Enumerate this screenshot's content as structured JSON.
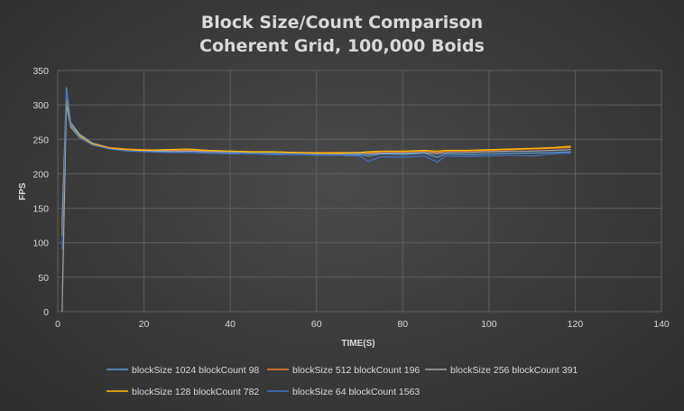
{
  "chart_data": {
    "type": "line",
    "title": "Block Size/Count Comparison",
    "subtitle": "Coherent Grid, 100,000 Boids",
    "xlabel": "TIME(S)",
    "ylabel": "FPS",
    "xlim": [
      0,
      140
    ],
    "ylim": [
      0,
      350
    ],
    "x_ticks": [
      0,
      20,
      40,
      60,
      80,
      100,
      120,
      140
    ],
    "y_ticks": [
      0,
      50,
      100,
      150,
      200,
      250,
      300,
      350
    ],
    "grid": true,
    "legend_position": "bottom",
    "x": [
      1,
      2,
      3,
      5,
      8,
      12,
      16,
      20,
      25,
      30,
      35,
      40,
      45,
      50,
      55,
      60,
      65,
      70,
      72,
      75,
      80,
      85,
      88,
      90,
      95,
      100,
      105,
      110,
      115,
      119
    ],
    "series": [
      {
        "name": "blockSize 1024 blockCount 98",
        "color": "#5b9bd5",
        "values": [
          130,
          325,
          275,
          258,
          245,
          238,
          235,
          233,
          232,
          231,
          230,
          230,
          229,
          229,
          228,
          228,
          227,
          228,
          226,
          229,
          228,
          230,
          224,
          229,
          228,
          229,
          230,
          230,
          231,
          232
        ]
      },
      {
        "name": "blockSize 512 blockCount 196",
        "color": "#ed7d31",
        "values": [
          120,
          310,
          270,
          255,
          244,
          238,
          236,
          235,
          234,
          234,
          233,
          233,
          232,
          232,
          231,
          231,
          231,
          231,
          230,
          232,
          232,
          233,
          231,
          233,
          233,
          234,
          235,
          236,
          237,
          238
        ]
      },
      {
        "name": "blockSize 256 blockCount 391",
        "color": "#a5a5a5",
        "values": [
          0,
          300,
          268,
          253,
          242,
          237,
          235,
          234,
          233,
          233,
          232,
          232,
          231,
          231,
          230,
          230,
          229,
          230,
          229,
          230,
          230,
          231,
          229,
          231,
          231,
          232,
          233,
          233,
          234,
          235
        ]
      },
      {
        "name": "blockSize 128 blockCount 782",
        "color": "#ffc000",
        "values": [
          110,
          315,
          272,
          256,
          243,
          237,
          235,
          234,
          235,
          236,
          234,
          233,
          232,
          232,
          231,
          230,
          230,
          231,
          232,
          233,
          233,
          234,
          233,
          234,
          234,
          235,
          236,
          237,
          238,
          240
        ]
      },
      {
        "name": "blockSize 64 blockCount 1563",
        "color": "#4472c4",
        "values": [
          90,
          320,
          271,
          254,
          242,
          236,
          233,
          232,
          231,
          231,
          230,
          229,
          229,
          228,
          228,
          227,
          227,
          226,
          218,
          225,
          224,
          226,
          217,
          226,
          225,
          226,
          227,
          226,
          229,
          230
        ]
      }
    ]
  }
}
